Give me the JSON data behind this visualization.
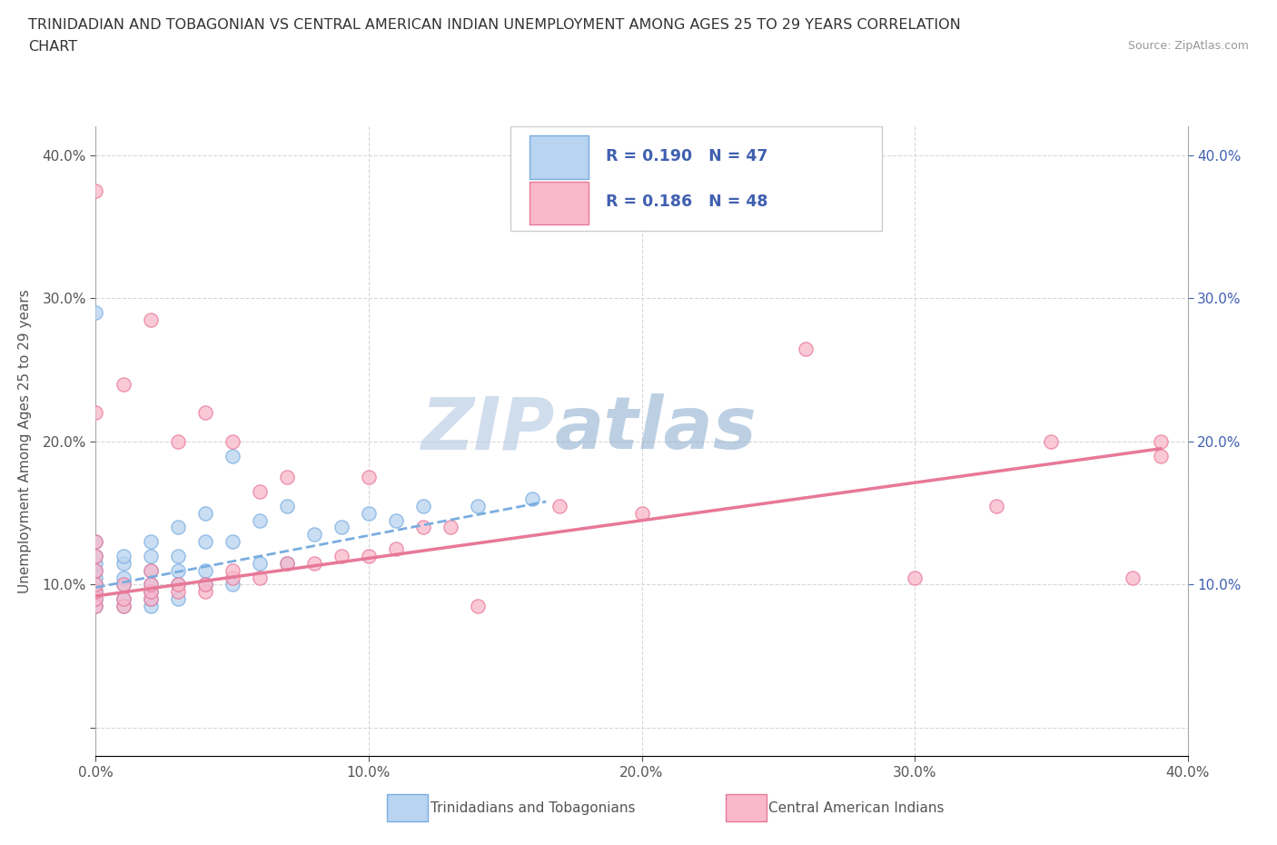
{
  "title_line1": "TRINIDADIAN AND TOBAGONIAN VS CENTRAL AMERICAN INDIAN UNEMPLOYMENT AMONG AGES 25 TO 29 YEARS CORRELATION",
  "title_line2": "CHART",
  "source": "Source: ZipAtlas.com",
  "ylabel": "Unemployment Among Ages 25 to 29 years",
  "xlim": [
    0.0,
    0.4
  ],
  "ylim": [
    -0.02,
    0.42
  ],
  "xticks": [
    0.0,
    0.1,
    0.2,
    0.3,
    0.4
  ],
  "yticks": [
    0.0,
    0.1,
    0.2,
    0.3,
    0.4
  ],
  "right_yticks": [
    0.1,
    0.2,
    0.3,
    0.4
  ],
  "watermark_zip": "ZIP",
  "watermark_atlas": "atlas",
  "legend_r1": "R = 0.190",
  "legend_n1": "N = 47",
  "legend_r2": "R = 0.186",
  "legend_n2": "N = 48",
  "color_blue_fill": "#b8d4f0",
  "color_blue_edge": "#7aade0",
  "color_pink_fill": "#f9b8cc",
  "color_pink_edge": "#e87898",
  "color_trendline_blue": "#7aade0",
  "color_trendline_pink": "#e87898",
  "legend_text_color": "#4060b0",
  "right_tick_color": "#4060b0",
  "background_color": "#ffffff",
  "grid_color": "#d8d8d8",
  "title_color": "#333333",
  "tick_color": "#555555",
  "blue_scatter_x": [
    0.0,
    0.0,
    0.0,
    0.0,
    0.0,
    0.0,
    0.0,
    0.0,
    0.0,
    0.0,
    0.0,
    0.01,
    0.01,
    0.01,
    0.01,
    0.01,
    0.01,
    0.02,
    0.02,
    0.02,
    0.02,
    0.02,
    0.02,
    0.02,
    0.03,
    0.03,
    0.03,
    0.03,
    0.03,
    0.04,
    0.04,
    0.04,
    0.04,
    0.05,
    0.05,
    0.05,
    0.06,
    0.06,
    0.07,
    0.07,
    0.08,
    0.09,
    0.1,
    0.11,
    0.12,
    0.14,
    0.16
  ],
  "blue_scatter_y": [
    0.085,
    0.09,
    0.095,
    0.1,
    0.1,
    0.105,
    0.11,
    0.115,
    0.12,
    0.13,
    0.29,
    0.085,
    0.09,
    0.1,
    0.105,
    0.115,
    0.12,
    0.085,
    0.09,
    0.095,
    0.1,
    0.11,
    0.12,
    0.13,
    0.09,
    0.1,
    0.11,
    0.12,
    0.14,
    0.1,
    0.11,
    0.13,
    0.15,
    0.1,
    0.13,
    0.19,
    0.115,
    0.145,
    0.115,
    0.155,
    0.135,
    0.14,
    0.15,
    0.145,
    0.155,
    0.155,
    0.16
  ],
  "pink_scatter_x": [
    0.0,
    0.0,
    0.0,
    0.0,
    0.0,
    0.0,
    0.0,
    0.0,
    0.0,
    0.01,
    0.01,
    0.01,
    0.01,
    0.02,
    0.02,
    0.02,
    0.02,
    0.02,
    0.03,
    0.03,
    0.03,
    0.04,
    0.04,
    0.04,
    0.05,
    0.05,
    0.05,
    0.06,
    0.06,
    0.07,
    0.07,
    0.08,
    0.09,
    0.1,
    0.1,
    0.11,
    0.12,
    0.13,
    0.14,
    0.17,
    0.2,
    0.26,
    0.3,
    0.33,
    0.35,
    0.38,
    0.39,
    0.39
  ],
  "pink_scatter_y": [
    0.085,
    0.09,
    0.095,
    0.1,
    0.11,
    0.12,
    0.13,
    0.22,
    0.375,
    0.085,
    0.09,
    0.1,
    0.24,
    0.09,
    0.095,
    0.1,
    0.11,
    0.285,
    0.095,
    0.1,
    0.2,
    0.095,
    0.1,
    0.22,
    0.105,
    0.11,
    0.2,
    0.105,
    0.165,
    0.115,
    0.175,
    0.115,
    0.12,
    0.12,
    0.175,
    0.125,
    0.14,
    0.14,
    0.085,
    0.155,
    0.15,
    0.265,
    0.105,
    0.155,
    0.2,
    0.105,
    0.2,
    0.19
  ],
  "blue_trend_x": [
    0.0,
    0.165
  ],
  "blue_trend_y": [
    0.098,
    0.158
  ],
  "pink_trend_x": [
    0.0,
    0.39
  ],
  "pink_trend_y": [
    0.092,
    0.195
  ]
}
